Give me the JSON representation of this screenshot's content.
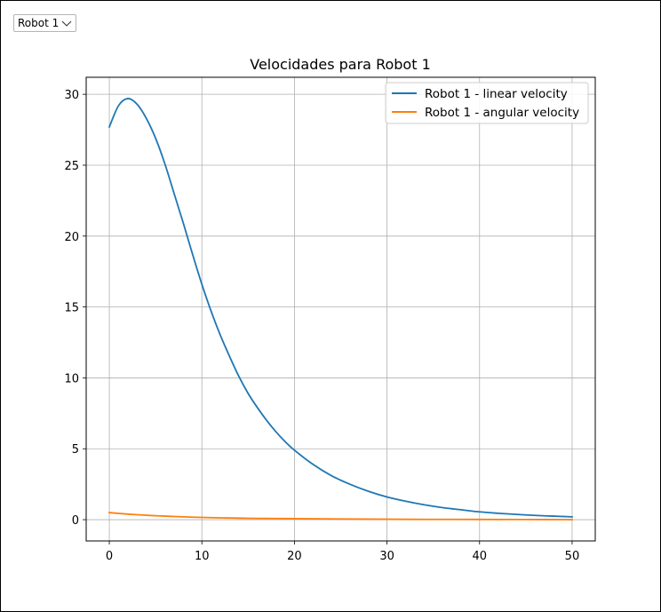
{
  "selector": {
    "selected": "Robot 1",
    "icon": "chevron-down-icon"
  },
  "chart_data": {
    "type": "line",
    "title": "Velocidades para Robot 1",
    "xlabel": "",
    "ylabel": "",
    "xlim": [
      -2.5,
      52.5
    ],
    "ylim": [
      -1.5,
      31.2
    ],
    "xticks": [
      0,
      10,
      20,
      30,
      40,
      50
    ],
    "yticks": [
      0,
      5,
      10,
      15,
      20,
      25,
      30
    ],
    "grid": true,
    "legend_position": "top-right",
    "series": [
      {
        "name": "Robot 1 - linear velocity",
        "color": "#1f77b4",
        "x": [
          0,
          1,
          2,
          3,
          4,
          5,
          6,
          7,
          8,
          9,
          10,
          11,
          12,
          13,
          14,
          15,
          16,
          17,
          18,
          19,
          20,
          22,
          24,
          26,
          28,
          30,
          32,
          34,
          36,
          38,
          40,
          42,
          44,
          46,
          48,
          50
        ],
        "y": [
          27.7,
          29.2,
          29.7,
          29.3,
          28.3,
          26.9,
          25.1,
          23.0,
          20.9,
          18.7,
          16.6,
          14.7,
          13.0,
          11.5,
          10.1,
          8.9,
          7.9,
          7.0,
          6.2,
          5.5,
          4.9,
          3.9,
          3.1,
          2.5,
          2.0,
          1.6,
          1.3,
          1.05,
          0.85,
          0.7,
          0.55,
          0.45,
          0.37,
          0.3,
          0.25,
          0.2
        ]
      },
      {
        "name": "Robot 1 - angular velocity",
        "color": "#ff7f0e",
        "x": [
          0,
          1,
          2,
          3,
          4,
          5,
          6,
          8,
          10,
          12,
          14,
          16,
          18,
          20,
          25,
          30,
          35,
          40,
          45,
          50
        ],
        "y": [
          0.5,
          0.44,
          0.39,
          0.35,
          0.31,
          0.28,
          0.25,
          0.2,
          0.16,
          0.13,
          0.11,
          0.09,
          0.08,
          0.07,
          0.05,
          0.03,
          0.02,
          0.015,
          0.01,
          0.0
        ]
      }
    ]
  }
}
